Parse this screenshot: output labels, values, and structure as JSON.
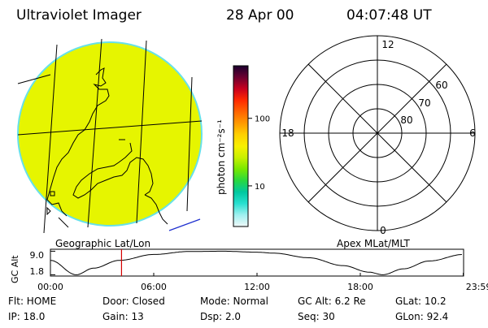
{
  "header": {
    "instrument": "Ultraviolet Imager",
    "date": "28 Apr 00",
    "time": "04:07:48 UT"
  },
  "colors": {
    "image_fill": "#e6f500",
    "disk_edge": "#67e1e9",
    "marker": "#d40000",
    "coast": "#000000",
    "extra_line": "#1e2fcf"
  },
  "colorbar": {
    "unit_label": "photon cm⁻²s⁻¹",
    "ticks": [
      {
        "label": "100",
        "value": 100
      },
      {
        "label": "10",
        "value": 10
      }
    ],
    "stops": [
      "#1a002e",
      "#6b0030",
      "#c8001e",
      "#ff2a00",
      "#ff6400",
      "#ff9a00",
      "#ffd000",
      "#f8f000",
      "#c8f000",
      "#78e800",
      "#28d840",
      "#00c8a0",
      "#28e0d0",
      "#a0f0f0",
      "#f0f8f8"
    ]
  },
  "map_caption": "Geographic Lat/Lon",
  "polar": {
    "caption": "Apex MLat/MLT",
    "mlt_labels": {
      "top": "12",
      "bottom": "0",
      "left": "18",
      "right": "6"
    },
    "mlat_labels": [
      "60",
      "70",
      "80"
    ]
  },
  "altitude_plot": {
    "ylabel": "GC Alt",
    "y_ticks": [
      "9.0",
      "1.8"
    ],
    "x_ticks": [
      "00:00",
      "06:00",
      "12:00",
      "18:00",
      "23:59"
    ],
    "series": {
      "x": [
        0.0,
        1.5,
        2.5,
        4.0,
        6.0,
        8.0,
        10.0,
        12.0,
        13.0,
        15.0,
        17.0,
        18.5,
        19.3,
        20.5,
        22.0,
        23.98
      ],
      "y": [
        6.2,
        1.8,
        3.8,
        6.2,
        8.0,
        8.9,
        9.0,
        8.7,
        8.4,
        7.0,
        4.6,
        2.6,
        1.8,
        3.6,
        6.0,
        8.0
      ]
    },
    "marker_time": 4.13
  },
  "status": {
    "r1": [
      "Flt: HOME",
      "Door: Closed",
      "Mode: Normal",
      "GC Alt: 6.2 Re",
      "GLat: 10.2"
    ],
    "r2": [
      "IP: 18.0",
      "Gain: 13",
      "Dsp:    2.0",
      "Seq: 30",
      "GLon: 92.4"
    ]
  }
}
